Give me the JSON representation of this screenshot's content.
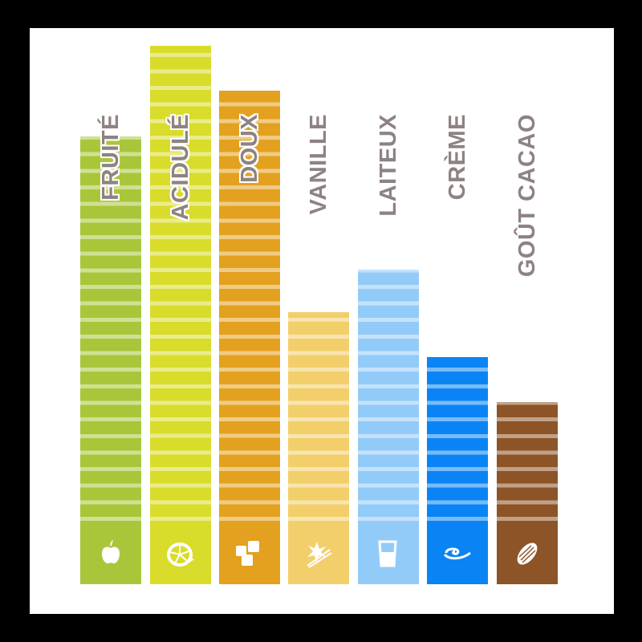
{
  "chart_data": {
    "type": "bar",
    "categories": [
      "FRUITÉ",
      "ACIDULÉ",
      "DOUX",
      "VANILLE",
      "LAITEUX",
      "CRÈME",
      "GOÛT CACAO"
    ],
    "values": [
      27,
      32.5,
      29.8,
      16.4,
      19,
      13.7,
      11
    ],
    "ylim": [
      0,
      35
    ],
    "grid": false,
    "legend": "none",
    "colors": [
      "#a9c63b",
      "#d9dc2a",
      "#e3a11f",
      "#f2cf6b",
      "#93cbf8",
      "#0a84f4",
      "#8d5427"
    ],
    "icons": [
      "apple-icon",
      "lemon-icon",
      "sugar-cubes-icon",
      "vanilla-flower-icon",
      "milk-glass-icon",
      "cream-swirl-icon",
      "cocoa-bean-icon"
    ],
    "label_color": "#8e8282"
  }
}
